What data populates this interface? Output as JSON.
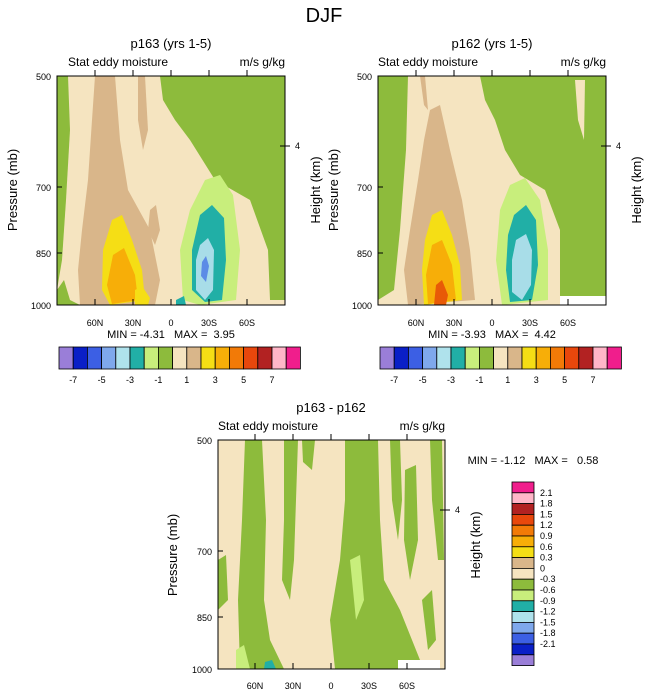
{
  "title": "DJF",
  "units": "m/s g/kg",
  "colors": {
    "orange_shade": "#F7AE08",
    "tan_shade": "#D9B68A",
    "light_tan": "#F5E4C0",
    "yellow": "#F5DE15",
    "dark_orange": "#E85A07",
    "green": "#8DBB3C",
    "light_green": "#C8EE7C",
    "teal": "#21AFA6",
    "pale_blue": "#A8DDE8",
    "blue": "#5C8CE6"
  },
  "chart_data": [
    {
      "type": "heatmap",
      "title": "p163 (yrs 1-5)",
      "subtitle": "Stat eddy moisture",
      "units": "m/s g/kg",
      "ylabel": "Pressure (mb)",
      "ylabel_right": "Height (km)",
      "yticks": [
        500,
        700,
        850,
        1000
      ],
      "yticks_right": [
        "4"
      ],
      "xticks": [
        "60N",
        "30N",
        "0",
        "30S",
        "60S"
      ],
      "stats": "MIN = -4.31   MAX =  3.95",
      "contour_levels": [
        -7,
        -6,
        -5,
        -4,
        -3,
        -2,
        -1,
        0,
        1,
        2,
        3,
        4,
        5,
        6,
        7
      ]
    },
    {
      "type": "heatmap",
      "title": "p162 (yrs 1-5)",
      "subtitle": "Stat eddy moisture",
      "units": "m/s g/kg",
      "ylabel": "Pressure (mb)",
      "ylabel_right": "Height (km)",
      "yticks": [
        500,
        700,
        850,
        1000
      ],
      "yticks_right": [
        "4"
      ],
      "xticks": [
        "60N",
        "30N",
        "0",
        "30S",
        "60S"
      ],
      "stats": "MIN = -3.93   MAX =  4.42",
      "contour_levels": [
        -7,
        -6,
        -5,
        -4,
        -3,
        -2,
        -1,
        0,
        1,
        2,
        3,
        4,
        5,
        6,
        7
      ]
    },
    {
      "type": "heatmap",
      "title": "p163 - p162",
      "subtitle": "Stat eddy moisture",
      "units": "m/s g/kg",
      "ylabel": "Pressure (mb)",
      "ylabel_right": "Height (km)",
      "yticks": [
        500,
        700,
        850,
        1000
      ],
      "yticks_right": [
        "4"
      ],
      "xticks": [
        "60N",
        "30N",
        "0",
        "30S",
        "60S"
      ],
      "stats": "MIN = -1.12   MAX =   0.58",
      "contour_levels": [
        -2.1,
        -1.8,
        -1.5,
        -1.2,
        -0.9,
        -0.6,
        -0.3,
        0,
        0.3,
        0.6,
        0.9,
        1.2,
        1.5,
        1.8,
        2.1
      ]
    }
  ],
  "colorbar_top": {
    "labels": [
      "-7",
      "-5",
      "-3",
      "-1",
      "1",
      "3",
      "5",
      "7"
    ],
    "colors": [
      "#9A7ED8",
      "#0A1FC7",
      "#3C5FE4",
      "#7FA8EC",
      "#AFE2EC",
      "#21AFA6",
      "#C8EE7C",
      "#8DBB3C",
      "#F5E4C0",
      "#D9B68A",
      "#F5DE15",
      "#F7AE08",
      "#F27A07",
      "#E8470C",
      "#B22222",
      "#FFB6C8",
      "#F01E8C"
    ]
  },
  "colorbar_diff": {
    "labels": [
      "2.1",
      "1.8",
      "1.5",
      "1.2",
      "0.9",
      "0.6",
      "0.3",
      "0",
      "-0.3",
      "-0.6",
      "-0.9",
      "-1.2",
      "-1.5",
      "-1.8",
      "-2.1"
    ],
    "colors": [
      "#F01E8C",
      "#FFB6C8",
      "#B22222",
      "#E8470C",
      "#F27A07",
      "#F7AE08",
      "#F5DE15",
      "#D9B68A",
      "#F5E4C0",
      "#8DBB3C",
      "#C8EE7C",
      "#21AFA6",
      "#AFE2EC",
      "#7FA8EC",
      "#3C5FE4",
      "#0A1FC7",
      "#9A7ED8"
    ]
  }
}
